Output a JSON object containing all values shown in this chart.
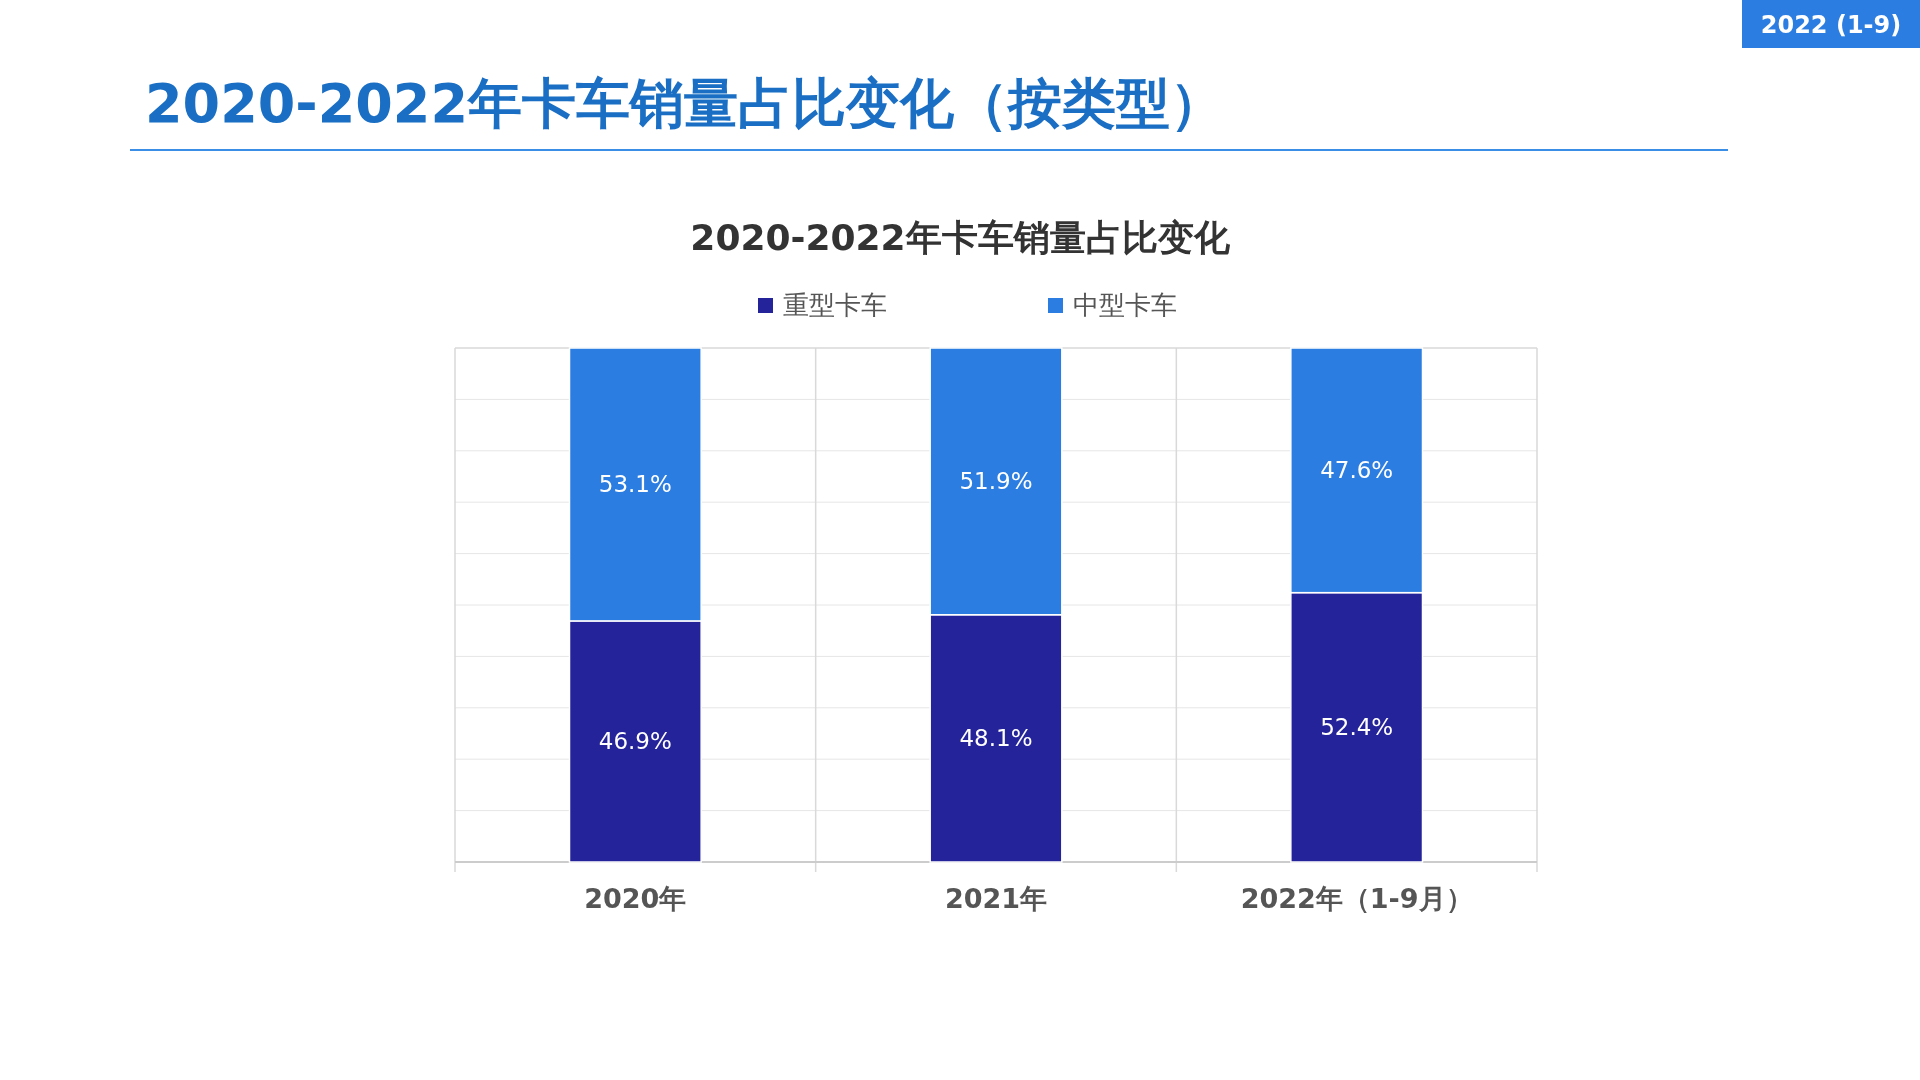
{
  "chart_data": {
    "type": "bar",
    "stacked": true,
    "title": "2020-2022年卡车销量占比变化（按类型）",
    "subtitle": "2020-2022年卡车销量占比变化",
    "annotations": [
      "2022 (1-9)"
    ],
    "categories": [
      "2020年",
      "2021年",
      "2022年（1-9月）"
    ],
    "series": [
      {
        "name": "重型卡车",
        "color": "#24239a",
        "values": [
          46.9,
          48.1,
          52.4
        ],
        "value_labels": [
          "46.9%",
          "48.1%",
          "52.4%"
        ]
      },
      {
        "name": "中型卡车",
        "color": "#2b7de1",
        "values": [
          53.1,
          51.9,
          47.6
        ],
        "value_labels": [
          "53.1%",
          "51.9%",
          "47.6%"
        ]
      }
    ],
    "legend": "top",
    "grid": "y",
    "tick_labels": "x"
  }
}
